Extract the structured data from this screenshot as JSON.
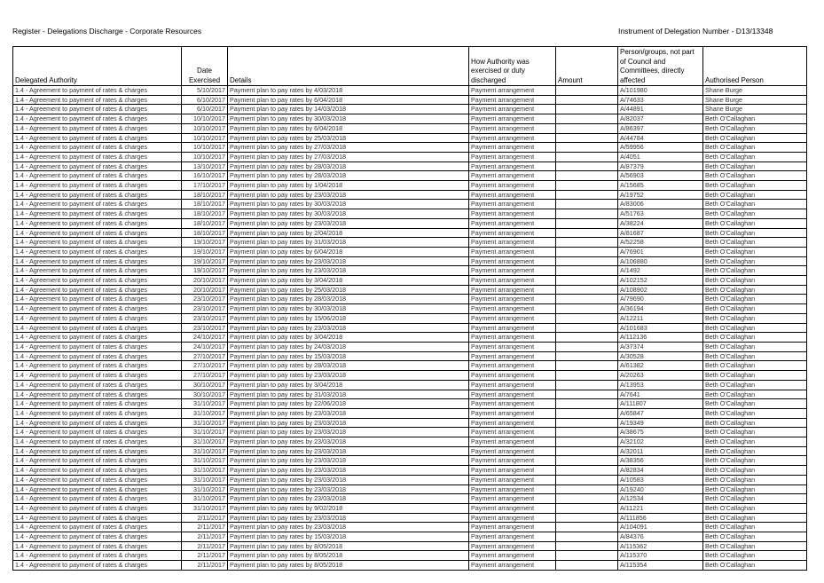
{
  "page": {
    "title": "Register - Delegations Discharge - Corporate Resources",
    "instrument": "Instrument of Delegation Number - D13/13348"
  },
  "columns": {
    "delegated_authority": "Delegated Authority",
    "date_exercised": "Date Exercised",
    "details": "Details",
    "how_exercised": "How Authority was exercised or duty discharged",
    "amount": "Amount",
    "persons_affected": "Person/groups, not part of Council and Committees, directly affected",
    "authorised_person": "Authorised Person"
  },
  "rows": [
    {
      "authority": "1.4 - Agreement to payment of rates & charges",
      "date": "5/10/2017",
      "details": "Payment plan to pay rates by 4/03/2018",
      "how": "Payment arrangement",
      "amount": "",
      "affected": "A/101980",
      "person": "Shane Burge"
    },
    {
      "authority": "1.4 - Agreement to payment of rates & charges",
      "date": "6/10/2017",
      "details": "Payment plan to pay rates by 6/04/2018",
      "how": "Payment arrangement",
      "amount": "",
      "affected": "A/74633",
      "person": "Shane Burge"
    },
    {
      "authority": "1.4 - Agreement to payment of rates & charges",
      "date": "6/10/2017",
      "details": "Payment plan to pay rates by 14/03/2018",
      "how": "Payment arrangement",
      "amount": "",
      "affected": "A/44891",
      "person": "Shane Burge"
    },
    {
      "authority": "1.4 - Agreement to payment of rates & charges",
      "date": "10/10/2017",
      "details": "Payment plan to pay rates by 30/03/2018",
      "how": "Payment arrangement",
      "amount": "",
      "affected": "A/82037",
      "person": "Beth O'Callaghan"
    },
    {
      "authority": "1.4 - Agreement to payment of rates & charges",
      "date": "10/10/2017",
      "details": "Payment plan to pay rates by 6/04/2018",
      "how": "Payment arrangement",
      "amount": "",
      "affected": "A/86397",
      "person": "Beth O'Callaghan"
    },
    {
      "authority": "1.4 - Agreement to payment of rates & charges",
      "date": "10/10/2017",
      "details": "Payment plan to pay rates by 25/03/2018",
      "how": "Payment arrangement",
      "amount": "",
      "affected": "A/44784",
      "person": "Beth O'Callaghan"
    },
    {
      "authority": "1.4 - Agreement to payment of rates & charges",
      "date": "10/10/2017",
      "details": "Payment plan to pay rates by 27/03/2018",
      "how": "Payment arrangement",
      "amount": "",
      "affected": "A/59956",
      "person": "Beth O'Callaghan"
    },
    {
      "authority": "1.4 - Agreement to payment of rates & charges",
      "date": "10/10/2017",
      "details": "Payment plan to pay rates by 27/03/2018",
      "how": "Payment arrangement",
      "amount": "",
      "affected": "A/4051",
      "person": "Beth O'Callaghan"
    },
    {
      "authority": "1.4 - Agreement to payment of rates & charges",
      "date": "13/10/2017",
      "details": "Payment plan to pay rates by 28/03/2018",
      "how": "Payment arrangement",
      "amount": "",
      "affected": "A/87379",
      "person": "Beth O'Callaghan"
    },
    {
      "authority": "1.4 - Agreement to payment of rates & charges",
      "date": "16/10/2017",
      "details": "Payment plan to pay rates by 28/03/2018",
      "how": "Payment arrangement",
      "amount": "",
      "affected": "A/56903",
      "person": "Beth O'Callaghan"
    },
    {
      "authority": "1.4 - Agreement to payment of rates & charges",
      "date": "17/10/2017",
      "details": "Payment plan to pay rates by 1/04/2018",
      "how": "Payment arrangement",
      "amount": "",
      "affected": "A/15685",
      "person": "Beth O'Callaghan"
    },
    {
      "authority": "1.4 - Agreement to payment of rates & charges",
      "date": "18/10/2017",
      "details": "Payment plan to pay rates by 23/03/2018",
      "how": "Payment arrangement",
      "amount": "",
      "affected": "A/19752",
      "person": "Beth O'Callaghan"
    },
    {
      "authority": "1.4 - Agreement to payment of rates & charges",
      "date": "18/10/2017",
      "details": "Payment plan to pay rates by 30/03/2018",
      "how": "Payment arrangement",
      "amount": "",
      "affected": "A/83006",
      "person": "Beth O'Callaghan"
    },
    {
      "authority": "1.4 - Agreement to payment of rates & charges",
      "date": "18/10/2017",
      "details": "Payment plan to pay rates by 30/03/2018",
      "how": "Payment arrangement",
      "amount": "",
      "affected": "A/51763",
      "person": "Beth O'Callaghan"
    },
    {
      "authority": "1.4 - Agreement to payment of rates & charges",
      "date": "18/10/2017",
      "details": "Payment plan to pay rates by 23/03/2018",
      "how": "Payment arrangement",
      "amount": "",
      "affected": "A/38224",
      "person": "Beth O'Callaghan"
    },
    {
      "authority": "1.4 - Agreement to payment of rates & charges",
      "date": "18/10/2017",
      "details": "Payment plan to pay rates by 2/04/2018",
      "how": "Payment arrangement",
      "amount": "",
      "affected": "A/81687",
      "person": "Beth O'Callaghan"
    },
    {
      "authority": "1.4 - Agreement to payment of rates & charges",
      "date": "19/10/2017",
      "details": "Payment plan to pay rates by 31/03/2018",
      "how": "Payment arrangement",
      "amount": "",
      "affected": "A/52258",
      "person": "Beth O'Callaghan"
    },
    {
      "authority": "1.4 - Agreement to payment of rates & charges",
      "date": "19/10/2017",
      "details": "Payment plan to pay rates by 6/04/2018",
      "how": "Payment arrangement",
      "amount": "",
      "affected": "A/76901",
      "person": "Beth O'Callaghan"
    },
    {
      "authority": "1.4 - Agreement to payment of rates & charges",
      "date": "19/10/2017",
      "details": "Payment plan to pay rates by 23/03/2018",
      "how": "Payment arrangement",
      "amount": "",
      "affected": "A/106880",
      "person": "Beth O'Callaghan"
    },
    {
      "authority": "1.4 - Agreement to payment of rates & charges",
      "date": "19/10/2017",
      "details": "Payment plan to pay rates by 23/03/2018",
      "how": "Payment arrangement",
      "amount": "",
      "affected": "A/1492",
      "person": "Beth O'Callaghan"
    },
    {
      "authority": "1.4 - Agreement to payment of rates & charges",
      "date": "20/10/2017",
      "details": "Payment plan to pay rates by 3/04/2018",
      "how": "Payment arrangement",
      "amount": "",
      "affected": "A/102152",
      "person": "Beth O'Callaghan"
    },
    {
      "authority": "1.4 - Agreement to payment of rates & charges",
      "date": "20/10/2017",
      "details": "Payment plan to pay rates by 25/03/2018",
      "how": "Payment arrangement",
      "amount": "",
      "affected": "A/108902",
      "person": "Beth O'Callaghan"
    },
    {
      "authority": "1.4 - Agreement to payment of rates & charges",
      "date": "23/10/2017",
      "details": "Payment plan to pay rates by 28/03/2018",
      "how": "Payment arrangement",
      "amount": "",
      "affected": "A/79690",
      "person": "Beth O'Callaghan"
    },
    {
      "authority": "1.4 - Agreement to payment of rates & charges",
      "date": "23/10/2017",
      "details": "Payment plan to pay rates by 30/03/2018",
      "how": "Payment arrangement",
      "amount": "",
      "affected": "A/36194",
      "person": "Beth O'Callaghan"
    },
    {
      "authority": "1.4 - Agreement to payment of rates & charges",
      "date": "23/10/2017",
      "details": "Payment plan to pay rates by 15/06/2018",
      "how": "Payment arrangement",
      "amount": "",
      "affected": "A/12211",
      "person": "Beth O'Callaghan"
    },
    {
      "authority": "1.4 - Agreement to payment of rates & charges",
      "date": "23/10/2017",
      "details": "Payment plan to pay rates by 23/03/2018",
      "how": "Payment arrangement",
      "amount": "",
      "affected": "A/101683",
      "person": "Beth O'Callaghan"
    },
    {
      "authority": "1.4 - Agreement to payment of rates & charges",
      "date": "24/10/2017",
      "details": "Payment plan to pay rates by 3/04/2018",
      "how": "Payment arrangement",
      "amount": "",
      "affected": "A/112136",
      "person": "Beth O'Callaghan"
    },
    {
      "authority": "1.4 - Agreement to payment of rates & charges",
      "date": "24/10/2017",
      "details": "Payment plan to pay rates by 24/03/2018",
      "how": "Payment arrangement",
      "amount": "",
      "affected": "A/37374",
      "person": "Beth O'Callaghan"
    },
    {
      "authority": "1.4 - Agreement to payment of rates & charges",
      "date": "27/10/2017",
      "details": "Payment plan to pay rates by 15/03/2018",
      "how": "Payment arrangement",
      "amount": "",
      "affected": "A/30528",
      "person": "Beth O'Callaghan"
    },
    {
      "authority": "1.4 - Agreement to payment of rates & charges",
      "date": "27/10/2017",
      "details": "Payment plan to pay rates by 28/03/2018",
      "how": "Payment arrangement",
      "amount": "",
      "affected": "A/61382",
      "person": "Beth O'Callaghan"
    },
    {
      "authority": "1.4 - Agreement to payment of rates & charges",
      "date": "27/10/2017",
      "details": "Payment plan to pay rates by 23/03/2018",
      "how": "Payment arrangement",
      "amount": "",
      "affected": "A/20263",
      "person": "Beth O'Callaghan"
    },
    {
      "authority": "1.4 - Agreement to payment of rates & charges",
      "date": "30/10/2017",
      "details": "Payment plan to pay rates by 3/04/2018",
      "how": "Payment arrangement",
      "amount": "",
      "affected": "A/13953",
      "person": "Beth O'Callaghan"
    },
    {
      "authority": "1.4 - Agreement to payment of rates & charges",
      "date": "30/10/2017",
      "details": "Payment plan to pay rates by 31/03/2018",
      "how": "Payment arrangement",
      "amount": "",
      "affected": "A/7641",
      "person": "Beth O'Callaghan"
    },
    {
      "authority": "1.4 - Agreement to payment of rates & charges",
      "date": "31/10/2017",
      "details": "Payment plan to pay rates by 22/06/2018",
      "how": "Payment arrangement",
      "amount": "",
      "affected": "A/111807",
      "person": "Beth O'Callaghan"
    },
    {
      "authority": "1.4 - Agreement to payment of rates & charges",
      "date": "31/10/2017",
      "details": "Payment plan to pay rates by 23/03/2018",
      "how": "Payment arrangement",
      "amount": "",
      "affected": "A/65847",
      "person": "Beth O'Callaghan"
    },
    {
      "authority": "1.4 - Agreement to payment of rates & charges",
      "date": "31/10/2017",
      "details": "Payment plan to pay rates by 23/03/2018",
      "how": "Payment arrangement",
      "amount": "",
      "affected": "A/19349",
      "person": "Beth O'Callaghan"
    },
    {
      "authority": "1.4 - Agreement to payment of rates & charges",
      "date": "31/10/2017",
      "details": "Payment plan to pay rates by 23/03/2018",
      "how": "Payment arrangement",
      "amount": "",
      "affected": "A/38675",
      "person": "Beth O'Callaghan"
    },
    {
      "authority": "1.4 - Agreement to payment of rates & charges",
      "date": "31/10/2017",
      "details": "Payment plan to pay rates by 23/03/2018",
      "how": "Payment arrangement",
      "amount": "",
      "affected": "A/32102",
      "person": "Beth O'Callaghan"
    },
    {
      "authority": "1.4 - Agreement to payment of rates & charges",
      "date": "31/10/2017",
      "details": "Payment plan to pay rates by 23/03/2018",
      "how": "Payment arrangement",
      "amount": "",
      "affected": "A/32011",
      "person": "Beth O'Callaghan"
    },
    {
      "authority": "1.4 - Agreement to payment of rates & charges",
      "date": "31/10/2017",
      "details": "Payment plan to pay rates by 23/03/2018",
      "how": "Payment arrangement",
      "amount": "",
      "affected": "A/38356",
      "person": "Beth O'Callaghan"
    },
    {
      "authority": "1.4 - Agreement to payment of rates & charges",
      "date": "31/10/2017",
      "details": "Payment plan to pay rates by 23/03/2018",
      "how": "Payment arrangement",
      "amount": "",
      "affected": "A/82834",
      "person": "Beth O'Callaghan"
    },
    {
      "authority": "1.4 - Agreement to payment of rates & charges",
      "date": "31/10/2017",
      "details": "Payment plan to pay rates by 23/03/2018",
      "how": "Payment arrangement",
      "amount": "",
      "affected": "A/10583",
      "person": "Beth O'Callaghan"
    },
    {
      "authority": "1.4 - Agreement to payment of rates & charges",
      "date": "31/10/2017",
      "details": "Payment plan to pay rates by 23/03/2018",
      "how": "Payment arrangement",
      "amount": "",
      "affected": "A/19240",
      "person": "Beth O'Callaghan"
    },
    {
      "authority": "1.4 - Agreement to payment of rates & charges",
      "date": "31/10/2017",
      "details": "Payment plan to pay rates by 23/03/2018",
      "how": "Payment arrangement",
      "amount": "",
      "affected": "A/12534",
      "person": "Beth O'Callaghan"
    },
    {
      "authority": "1.4 - Agreement to payment of rates & charges",
      "date": "31/10/2017",
      "details": "Payment plan to pay rates by 9/02/2018",
      "how": "Payment arrangement",
      "amount": "",
      "affected": "A/11221",
      "person": "Beth O'Callaghan"
    },
    {
      "authority": "1.4 - Agreement to payment of rates & charges",
      "date": "2/11/2017",
      "details": "Payment plan to pay rates by 23/03/2018",
      "how": "Payment arrangement",
      "amount": "",
      "affected": "A/111856",
      "person": "Beth O'Callaghan"
    },
    {
      "authority": "1.4 - Agreement to payment of rates & charges",
      "date": "2/11/2017",
      "details": "Payment plan to pay rates by 23/03/2018",
      "how": "Payment arrangement",
      "amount": "",
      "affected": "A/104091",
      "person": "Beth O'Callaghan"
    },
    {
      "authority": "1.4 - Agreement to payment of rates & charges",
      "date": "2/11/2017",
      "details": "Payment plan to pay rates by 15/03/2018",
      "how": "Payment arrangement",
      "amount": "",
      "affected": "A/84376",
      "person": "Beth O'Callaghan"
    },
    {
      "authority": "1.4 - Agreement to payment of rates & charges",
      "date": "2/11/2017",
      "details": "Payment plan to pay rates by 8/05/2018",
      "how": "Payment arrangement",
      "amount": "",
      "affected": "A/115362",
      "person": "Beth O'Callaghan"
    },
    {
      "authority": "1.4 - Agreement to payment of rates & charges",
      "date": "2/11/2017",
      "details": "Payment plan to pay rates by 8/05/2018",
      "how": "Payment arrangement",
      "amount": "",
      "affected": "A/115370",
      "person": "Beth O'Callaghan"
    },
    {
      "authority": "1.4 - Agreement to payment of rates & charges",
      "date": "2/11/2017",
      "details": "Payment plan to pay rates by 8/05/2018",
      "how": "Payment arrangement",
      "amount": "",
      "affected": "A/115354",
      "person": "Beth O'Callaghan"
    }
  ]
}
